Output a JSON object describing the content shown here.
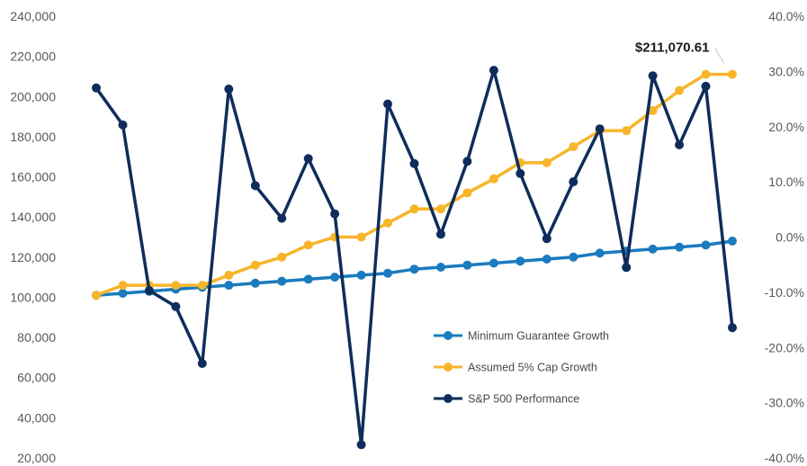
{
  "chart_data": {
    "type": "line",
    "title": "",
    "xlabel": "",
    "ylabel": "",
    "y_left": {
      "min": 20000,
      "max": 240000,
      "ticks": [
        "240,000",
        "220,000",
        "200,000",
        "180,000",
        "160,000",
        "140,000",
        "120,000",
        "100,000",
        "80,000",
        "60,000",
        "40,000",
        "20,000"
      ]
    },
    "y_right": {
      "min": -40,
      "max": 40,
      "ticks": [
        "40.0%",
        "30.0%",
        "20.0%",
        "10.0%",
        "0.0%",
        "-10.0%",
        "-20.0%",
        "-30.0%",
        "-40.0%"
      ]
    },
    "x_count": 25,
    "grid": false,
    "legend_position": "lower-right",
    "series": [
      {
        "name": "Minimum Guarantee Growth",
        "axis": "left",
        "color": "#1a7bbf",
        "values": [
          101000,
          102000,
          103000,
          104000,
          105000,
          106000,
          107000,
          108000,
          109000,
          110000,
          111000,
          112000,
          114000,
          115000,
          116000,
          117000,
          118000,
          119000,
          120000,
          122000,
          123000,
          124000,
          125000,
          126000,
          128000
        ]
      },
      {
        "name": "Assumed 5% Cap Growth",
        "axis": "left",
        "color": "#f7b52a",
        "values": [
          101000,
          106000,
          106000,
          106000,
          106000,
          111000,
          116000,
          120000,
          126000,
          130000,
          130000,
          137000,
          144000,
          144000,
          152000,
          159000,
          167000,
          167000,
          175000,
          183000,
          183000,
          193000,
          203000,
          211070.61,
          211070.61
        ]
      },
      {
        "name": "S&P 500 Performance",
        "axis": "right",
        "color": "#0f2d5c",
        "values": [
          27.0,
          20.3,
          -9.7,
          -12.6,
          -22.9,
          26.8,
          9.3,
          3.4,
          14.2,
          4.2,
          -37.6,
          24.1,
          13.3,
          0.5,
          13.7,
          30.2,
          11.5,
          -0.3,
          10.0,
          19.6,
          -5.5,
          29.2,
          16.7,
          27.3,
          -16.4
        ]
      }
    ],
    "annotation": {
      "text": "$211,070.61",
      "series_index": 1,
      "point_index": 23
    }
  }
}
